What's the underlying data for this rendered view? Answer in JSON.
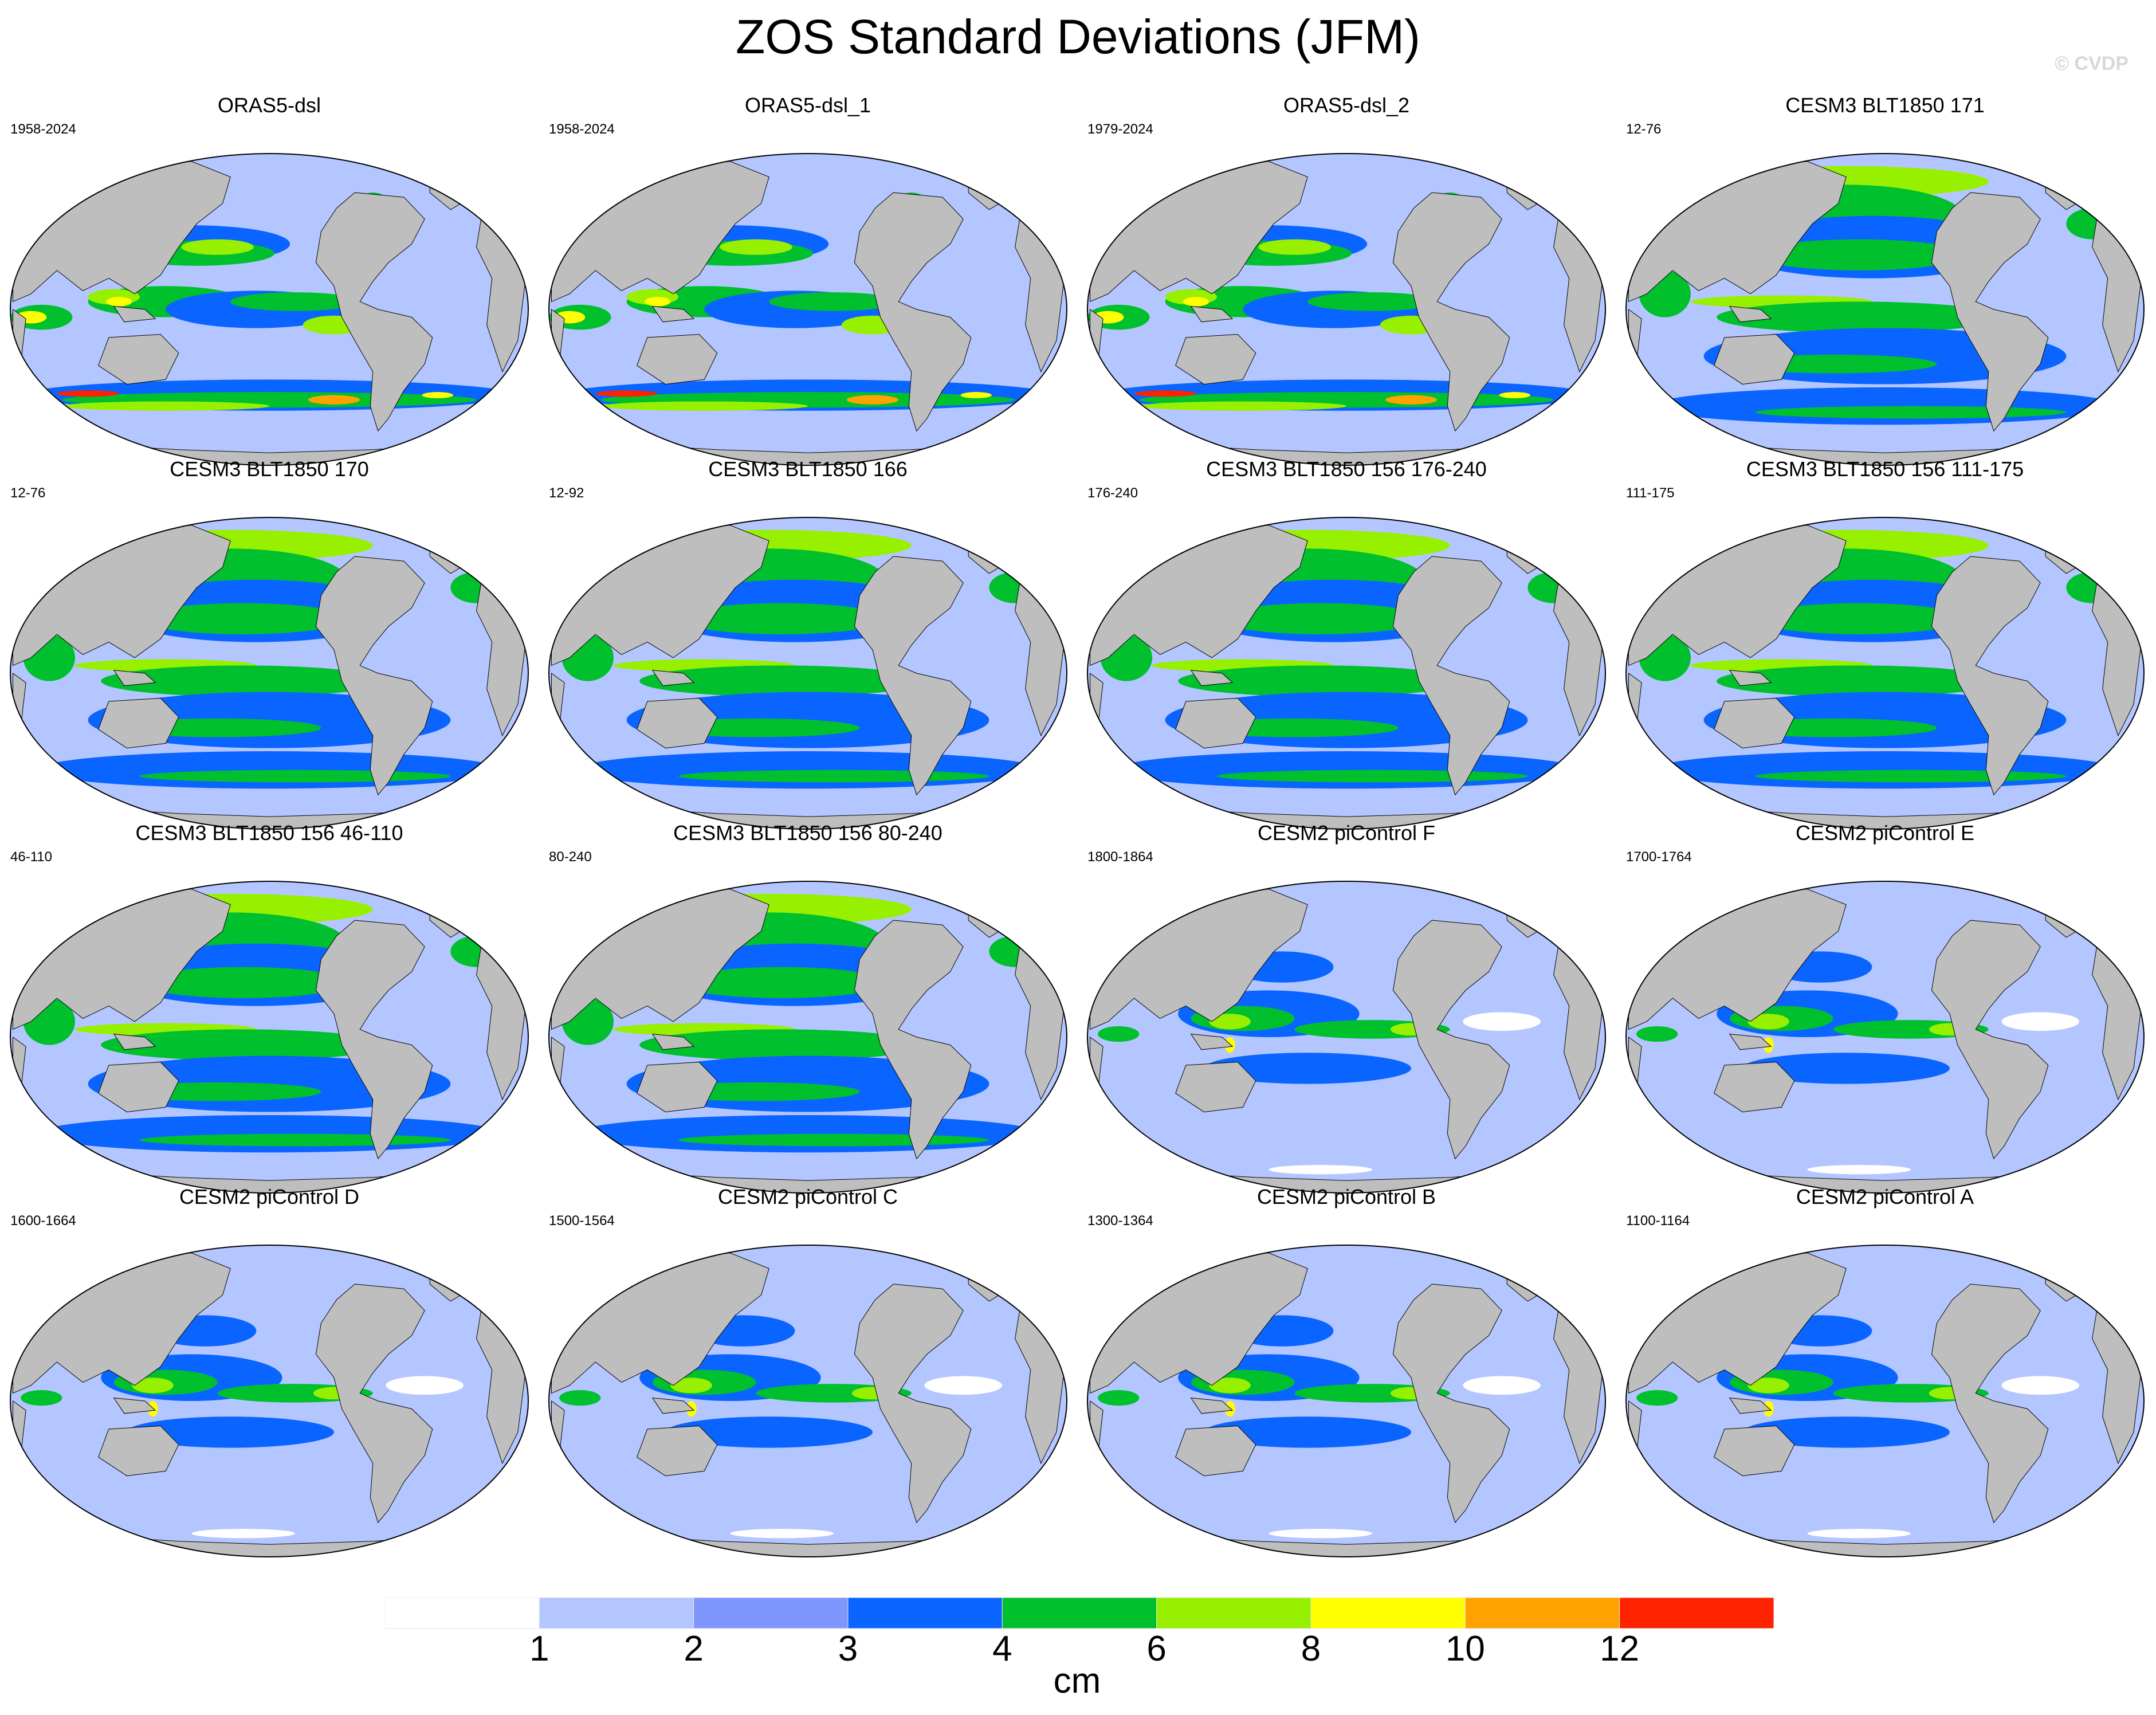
{
  "title": "ZOS Standard Deviations (JFM)",
  "watermark": "© CVDP",
  "panels": [
    {
      "name": "ORAS5-dsl",
      "years": "1958-2024"
    },
    {
      "name": "ORAS5-dsl_1",
      "years": "1958-2024"
    },
    {
      "name": "ORAS5-dsl_2",
      "years": "1979-2024"
    },
    {
      "name": "CESM3 BLT1850 171",
      "years": "12-76"
    },
    {
      "name": "CESM3 BLT1850 170",
      "years": "12-76"
    },
    {
      "name": "CESM3 BLT1850 166",
      "years": "12-92"
    },
    {
      "name": "CESM3 BLT1850 156 176-240",
      "years": "176-240"
    },
    {
      "name": "CESM3 BLT1850 156 111-175",
      "years": "111-175"
    },
    {
      "name": "CESM3 BLT1850 156 46-110",
      "years": "46-110"
    },
    {
      "name": "CESM3 BLT1850 156 80-240",
      "years": "80-240"
    },
    {
      "name": "CESM2 piControl F",
      "years": "1800-1864"
    },
    {
      "name": "CESM2 piControl E",
      "years": "1700-1764"
    },
    {
      "name": "CESM2 piControl D",
      "years": "1600-1664"
    },
    {
      "name": "CESM2 piControl C",
      "years": "1500-1564"
    },
    {
      "name": "CESM2 piControl B",
      "years": "1300-1364"
    },
    {
      "name": "CESM2 piControl A",
      "years": "1100-1164"
    }
  ],
  "colorbar": {
    "labels": [
      "1",
      "2",
      "3",
      "4",
      "6",
      "8",
      "10",
      "12"
    ],
    "colors": [
      "#ffffff",
      "#b3c6ff",
      "#7f96ff",
      "#0a64ff",
      "#00c02e",
      "#97f000",
      "#ffff00",
      "#ffa200",
      "#ff2200"
    ],
    "unit": "cm"
  },
  "map_colors": {
    "land": "#bebebe",
    "ocean_base": "#b3c6ff"
  }
}
